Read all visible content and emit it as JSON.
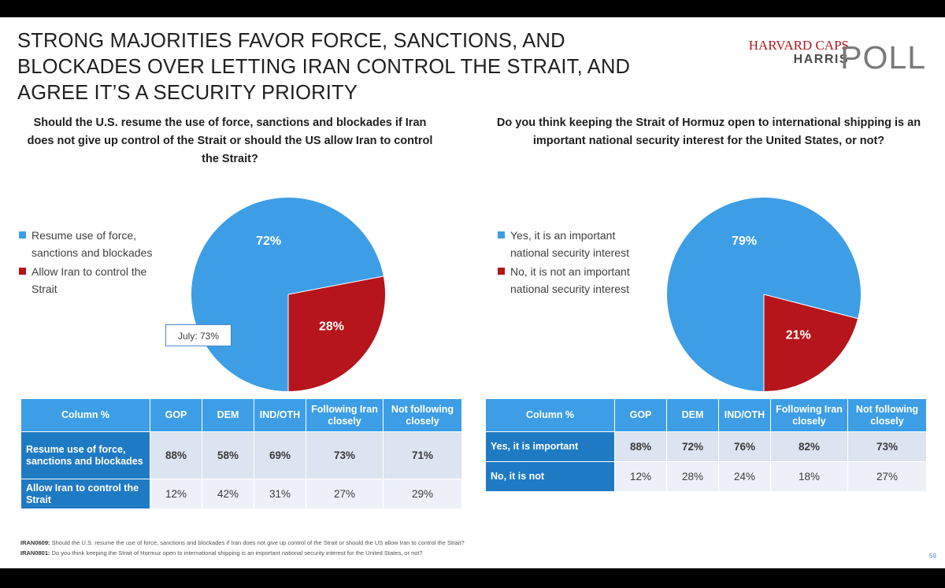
{
  "title": "STRONG MAJORITIES FAVOR FORCE, SANCTIONS, AND BLOCKADES OVER LETTING IRAN CONTROL THE STRAIT, AND AGREE IT’S A SECURITY PRIORITY",
  "logo": {
    "line1": "HARVARD CAPS",
    "line2": "HARRIS",
    "line3": "POLL"
  },
  "colors": {
    "blue": "#3d9ee6",
    "red": "#b5151b",
    "row_label": "#1f7ac4"
  },
  "left": {
    "question": "Should the U.S. resume the use of force, sanctions and blockades if Iran does not give up control of the Strait or should the US allow Iran to control the Strait?",
    "legend": [
      "Resume use of force, sanctions and blockades",
      "Allow Iran to control the Strait"
    ],
    "labels": [
      "72%",
      "28%"
    ],
    "callout": "July: 73%",
    "table": {
      "headers": [
        "Column %",
        "GOP",
        "DEM",
        "IND/OTH",
        "Following Iran closely",
        "Not following closely"
      ],
      "rows": [
        {
          "label": "Resume use of force, sanctions and blockades",
          "cells": [
            "88%",
            "58%",
            "69%",
            "73%",
            "71%"
          ]
        },
        {
          "label": "Allow Iran to control the Strait",
          "cells": [
            "12%",
            "42%",
            "31%",
            "27%",
            "29%"
          ]
        }
      ]
    }
  },
  "right": {
    "question": "Do you think keeping the Strait of Hormuz open to international shipping is an important national security interest for the United States, or not?",
    "legend": [
      "Yes, it is an important national security interest",
      "No, it is not an important national security interest"
    ],
    "labels": [
      "79%",
      "21%"
    ],
    "table": {
      "headers": [
        "Column %",
        "GOP",
        "DEM",
        "IND/OTH",
        "Following Iran closely",
        "Not following closely"
      ],
      "rows": [
        {
          "label": "Yes, it is important",
          "cells": [
            "88%",
            "72%",
            "76%",
            "82%",
            "73%"
          ]
        },
        {
          "label": "No, it is not",
          "cells": [
            "12%",
            "28%",
            "24%",
            "18%",
            "27%"
          ]
        }
      ]
    }
  },
  "footnotes": [
    {
      "code": "IRAN0609:",
      "text": "Should the U.S. resume the use of force, sanctions and blockades if Iran does not give up control of the Strait or should the US allow Iran to control the Strait?"
    },
    {
      "code": "IRAN0801:",
      "text": "Do you think keeping the Strait of Hormuz open to international shipping is an important national security interest for the United States, or not?"
    }
  ],
  "page_number": "59",
  "chart_data": [
    {
      "type": "pie",
      "categories": [
        "Resume use of force, sanctions and blockades",
        "Allow Iran to control the Strait"
      ],
      "values": [
        72,
        28
      ],
      "colors": [
        "#3d9ee6",
        "#b5151b"
      ],
      "legend": "left"
    },
    {
      "type": "pie",
      "categories": [
        "Yes, it is an important national security interest",
        "No, it is not an important national security interest"
      ],
      "values": [
        79,
        21
      ],
      "colors": [
        "#3d9ee6",
        "#b5151b"
      ],
      "legend": "left"
    },
    {
      "type": "table",
      "columns": [
        "GOP",
        "DEM",
        "IND/OTH",
        "Following Iran closely",
        "Not following closely"
      ],
      "rows": [
        {
          "name": "Resume use of force, sanctions and blockades",
          "values": [
            88,
            58,
            69,
            73,
            71
          ]
        },
        {
          "name": "Allow Iran to control the Strait",
          "values": [
            12,
            42,
            31,
            27,
            29
          ]
        }
      ]
    },
    {
      "type": "table",
      "columns": [
        "GOP",
        "DEM",
        "IND/OTH",
        "Following Iran closely",
        "Not following closely"
      ],
      "rows": [
        {
          "name": "Yes, it is important",
          "values": [
            88,
            72,
            76,
            82,
            73
          ]
        },
        {
          "name": "No, it is not",
          "values": [
            12,
            28,
            24,
            18,
            27
          ]
        }
      ]
    }
  ]
}
